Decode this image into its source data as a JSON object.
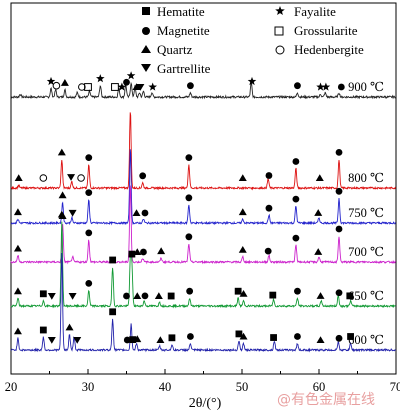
{
  "chart_data": {
    "type": "line",
    "xlabel": "2θ/(°)",
    "xlim": [
      20,
      70
    ],
    "x_ticks": [
      20,
      30,
      40,
      50,
      60,
      70
    ],
    "x_tick_labels": [
      "20",
      "30",
      "40",
      "50",
      "60",
      "70"
    ],
    "y_axis_ticks": false,
    "legend": {
      "placement": "top",
      "entries": [
        {
          "symbol": "filled-square",
          "label": "Hematite"
        },
        {
          "symbol": "star",
          "label": "Fayalite"
        },
        {
          "symbol": "filled-circle",
          "label": "Magnetite"
        },
        {
          "symbol": "open-square",
          "label": "Grossularite"
        },
        {
          "symbol": "filled-triangle-up",
          "label": "Quartz"
        },
        {
          "symbol": "open-circle",
          "label": "Hedenbergite"
        },
        {
          "symbol": "filled-triangle-down",
          "label": "Gartrellite"
        }
      ]
    },
    "series": [
      {
        "name": "900 ℃",
        "color": "#222222",
        "peaks": [
          [
            21.2,
            2
          ],
          [
            25.2,
            6
          ],
          [
            25.8,
            5
          ],
          [
            27.0,
            5
          ],
          [
            28.6,
            3
          ],
          [
            30.2,
            4
          ],
          [
            31.6,
            8
          ],
          [
            34.0,
            6
          ],
          [
            34.9,
            9
          ],
          [
            35.6,
            10
          ],
          [
            36.1,
            7
          ],
          [
            36.7,
            3
          ],
          [
            37.2,
            4
          ],
          [
            38.3,
            3
          ],
          [
            43.3,
            3
          ],
          [
            51.2,
            10
          ],
          [
            57.2,
            3
          ],
          [
            60.2,
            2
          ],
          [
            60.8,
            3
          ],
          [
            62.6,
            3
          ]
        ],
        "markers": [
          {
            "x": 25.2,
            "symbol": "star"
          },
          {
            "x": 25.9,
            "symbol": "open-circle"
          },
          {
            "x": 27.0,
            "symbol": "filled-triangle-up"
          },
          {
            "x": 29.2,
            "symbol": "open-circle"
          },
          {
            "x": 30.0,
            "symbol": "open-square"
          },
          {
            "x": 31.6,
            "symbol": "star"
          },
          {
            "x": 33.5,
            "symbol": "open-square"
          },
          {
            "x": 34.4,
            "symbol": "star"
          },
          {
            "x": 35.0,
            "symbol": "filled-circle"
          },
          {
            "x": 35.6,
            "symbol": "star"
          },
          {
            "x": 36.3,
            "symbol": "filled-triangle-up"
          },
          {
            "x": 36.8,
            "symbol": "filled-triangle-down"
          },
          {
            "x": 38.4,
            "symbol": "star"
          },
          {
            "x": 43.3,
            "symbol": "filled-circle"
          },
          {
            "x": 51.3,
            "symbol": "star"
          },
          {
            "x": 57.2,
            "symbol": "filled-circle"
          },
          {
            "x": 60.2,
            "symbol": "star"
          },
          {
            "x": 60.9,
            "symbol": "star"
          },
          {
            "x": 62.9,
            "symbol": "filled-circle"
          }
        ]
      },
      {
        "name": "800 ℃",
        "color": "#dd1111",
        "peaks": [
          [
            21.0,
            2
          ],
          [
            26.6,
            22
          ],
          [
            27.9,
            5
          ],
          [
            30.1,
            18
          ],
          [
            35.5,
            60
          ],
          [
            37.1,
            4
          ],
          [
            43.1,
            18
          ],
          [
            53.4,
            7
          ],
          [
            57.0,
            15
          ],
          [
            62.6,
            22
          ]
        ],
        "markers": [
          {
            "x": 21.0,
            "symbol": "filled-triangle-up"
          },
          {
            "x": 24.2,
            "symbol": "open-circle"
          },
          {
            "x": 26.6,
            "symbol": "filled-triangle-up"
          },
          {
            "x": 27.8,
            "symbol": "filled-triangle-down"
          },
          {
            "x": 29.1,
            "symbol": "open-circle"
          },
          {
            "x": 30.1,
            "symbol": "filled-circle"
          },
          {
            "x": 37.1,
            "symbol": "filled-circle"
          },
          {
            "x": 43.1,
            "symbol": "filled-circle"
          },
          {
            "x": 50.1,
            "symbol": "filled-triangle-up"
          },
          {
            "x": 53.5,
            "symbol": "filled-circle"
          },
          {
            "x": 57.0,
            "symbol": "filled-circle"
          },
          {
            "x": 60.1,
            "symbol": "filled-triangle-up"
          },
          {
            "x": 62.6,
            "symbol": "filled-circle"
          }
        ]
      },
      {
        "name": "750 ℃",
        "color": "#2222cc",
        "peaks": [
          [
            20.9,
            3
          ],
          [
            26.7,
            16
          ],
          [
            27.9,
            4
          ],
          [
            30.1,
            18
          ],
          [
            35.5,
            58
          ],
          [
            37.2,
            3
          ],
          [
            43.1,
            14
          ],
          [
            50.1,
            3
          ],
          [
            53.5,
            6
          ],
          [
            57.0,
            13
          ],
          [
            60.0,
            4
          ],
          [
            62.6,
            19
          ]
        ],
        "markers": [
          {
            "x": 20.9,
            "symbol": "filled-triangle-up"
          },
          {
            "x": 26.7,
            "symbol": "filled-triangle-up"
          },
          {
            "x": 28.0,
            "symbol": "filled-triangle-down"
          },
          {
            "x": 30.1,
            "symbol": "filled-circle"
          },
          {
            "x": 36.3,
            "symbol": "filled-triangle-up"
          },
          {
            "x": 37.4,
            "symbol": "filled-circle"
          },
          {
            "x": 43.1,
            "symbol": "filled-circle"
          },
          {
            "x": 50.1,
            "symbol": "filled-triangle-up"
          },
          {
            "x": 53.5,
            "symbol": "filled-circle"
          },
          {
            "x": 57.0,
            "symbol": "filled-circle"
          },
          {
            "x": 59.9,
            "symbol": "filled-triangle-up"
          },
          {
            "x": 62.6,
            "symbol": "filled-circle"
          }
        ]
      },
      {
        "name": "700 ℃",
        "color": "#cc22cc",
        "peaks": [
          [
            20.9,
            5
          ],
          [
            26.7,
            30
          ],
          [
            28.0,
            4
          ],
          [
            30.1,
            17
          ],
          [
            35.5,
            60
          ],
          [
            37.1,
            3
          ],
          [
            39.5,
            3
          ],
          [
            43.1,
            14
          ],
          [
            50.1,
            4
          ],
          [
            53.5,
            5
          ],
          [
            57.0,
            13
          ],
          [
            60.0,
            4
          ],
          [
            62.6,
            20
          ]
        ],
        "markers": [
          {
            "x": 20.9,
            "symbol": "filled-triangle-up"
          },
          {
            "x": 26.7,
            "symbol": "filled-triangle-up"
          },
          {
            "x": 30.1,
            "symbol": "filled-circle"
          },
          {
            "x": 36.4,
            "symbol": "filled-triangle-up"
          },
          {
            "x": 37.2,
            "symbol": "filled-circle"
          },
          {
            "x": 39.5,
            "symbol": "filled-triangle-up"
          },
          {
            "x": 43.1,
            "symbol": "filled-circle"
          },
          {
            "x": 50.1,
            "symbol": "filled-triangle-up"
          },
          {
            "x": 53.4,
            "symbol": "filled-circle"
          },
          {
            "x": 57.0,
            "symbol": "filled-circle"
          },
          {
            "x": 59.9,
            "symbol": "filled-triangle-up"
          },
          {
            "x": 62.6,
            "symbol": "filled-circle"
          }
        ]
      },
      {
        "name": "650 ℃",
        "color": "#119933",
        "peaks": [
          [
            20.9,
            6
          ],
          [
            24.2,
            4
          ],
          [
            26.6,
            65
          ],
          [
            30.1,
            12
          ],
          [
            33.2,
            30
          ],
          [
            35.5,
            35
          ],
          [
            35.7,
            30
          ],
          [
            37.3,
            4
          ],
          [
            39.3,
            3
          ],
          [
            43.2,
            6
          ],
          [
            49.5,
            6
          ],
          [
            50.2,
            4
          ],
          [
            54.1,
            5
          ],
          [
            57.2,
            6
          ],
          [
            60.3,
            4
          ],
          [
            62.5,
            8
          ],
          [
            64.1,
            4
          ]
        ],
        "markers": [
          {
            "x": 20.9,
            "symbol": "filled-triangle-up"
          },
          {
            "x": 24.2,
            "symbol": "filled-square"
          },
          {
            "x": 25.3,
            "symbol": "filled-triangle-down"
          },
          {
            "x": 26.6,
            "symbol": "filled-triangle-up"
          },
          {
            "x": 28.0,
            "symbol": "filled-triangle-down"
          },
          {
            "x": 30.1,
            "symbol": "filled-circle"
          },
          {
            "x": 33.2,
            "symbol": "filled-square"
          },
          {
            "x": 35.0,
            "symbol": "filled-circle"
          },
          {
            "x": 35.7,
            "symbol": "filled-square"
          },
          {
            "x": 36.4,
            "symbol": "filled-triangle-up"
          },
          {
            "x": 37.4,
            "symbol": "filled-circle"
          },
          {
            "x": 39.2,
            "symbol": "filled-triangle-up"
          },
          {
            "x": 40.8,
            "symbol": "filled-square"
          },
          {
            "x": 43.2,
            "symbol": "filled-circle"
          },
          {
            "x": 49.5,
            "symbol": "filled-square"
          },
          {
            "x": 50.2,
            "symbol": "filled-triangle-up"
          },
          {
            "x": 54.0,
            "symbol": "filled-square"
          },
          {
            "x": 57.2,
            "symbol": "filled-circle"
          },
          {
            "x": 60.2,
            "symbol": "filled-triangle-up"
          },
          {
            "x": 62.6,
            "symbol": "filled-circle"
          },
          {
            "x": 64.0,
            "symbol": "filled-square"
          }
        ]
      },
      {
        "name": "600 ℃",
        "color": "#2222aa",
        "peaks": [
          [
            20.9,
            9
          ],
          [
            24.2,
            10
          ],
          [
            26.6,
            75
          ],
          [
            27.6,
            12
          ],
          [
            28.2,
            10
          ],
          [
            33.2,
            24
          ],
          [
            35.6,
            20
          ],
          [
            36.3,
            5
          ],
          [
            39.3,
            3
          ],
          [
            40.9,
            4
          ],
          [
            43.3,
            5
          ],
          [
            49.6,
            7
          ],
          [
            50.2,
            5
          ],
          [
            54.2,
            7
          ],
          [
            57.2,
            5
          ],
          [
            62.5,
            6
          ],
          [
            64.1,
            5
          ]
        ],
        "markers": [
          {
            "x": 20.9,
            "symbol": "filled-triangle-up"
          },
          {
            "x": 24.2,
            "symbol": "filled-square"
          },
          {
            "x": 25.3,
            "symbol": "filled-triangle-down"
          },
          {
            "x": 27.6,
            "symbol": "filled-triangle-up"
          },
          {
            "x": 28.6,
            "symbol": "filled-triangle-down"
          },
          {
            "x": 33.2,
            "symbol": "filled-square"
          },
          {
            "x": 35.1,
            "symbol": "filled-circle"
          },
          {
            "x": 35.8,
            "symbol": "filled-square"
          },
          {
            "x": 36.4,
            "symbol": "filled-triangle-up"
          },
          {
            "x": 39.4,
            "symbol": "filled-triangle-up"
          },
          {
            "x": 40.9,
            "symbol": "filled-square"
          },
          {
            "x": 43.3,
            "symbol": "filled-circle"
          },
          {
            "x": 49.6,
            "symbol": "filled-square"
          },
          {
            "x": 50.2,
            "symbol": "filled-triangle-up"
          },
          {
            "x": 54.1,
            "symbol": "filled-square"
          },
          {
            "x": 57.2,
            "symbol": "filled-circle"
          },
          {
            "x": 60.2,
            "symbol": "filled-triangle-up"
          },
          {
            "x": 62.6,
            "symbol": "filled-circle"
          },
          {
            "x": 64.1,
            "symbol": "filled-square"
          }
        ]
      }
    ]
  },
  "watermark": "@有色金属在线"
}
